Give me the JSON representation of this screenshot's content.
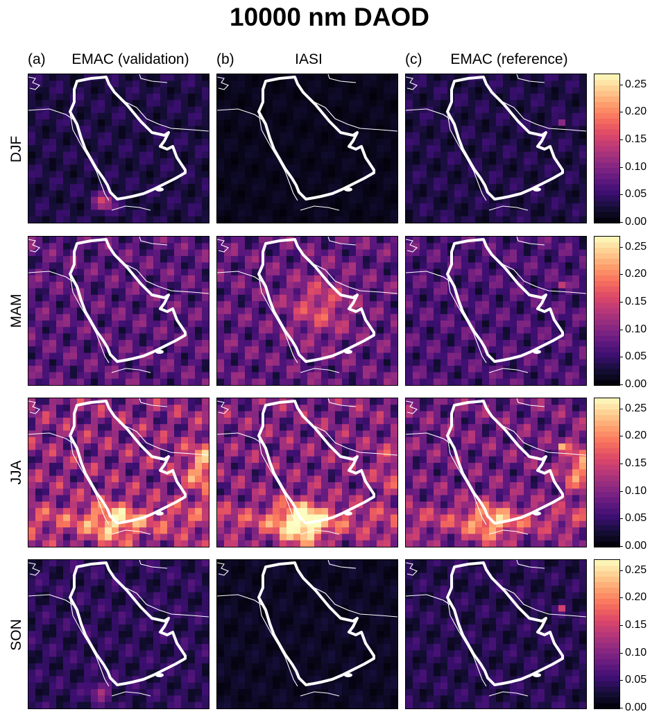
{
  "title": "10000 nm DAOD",
  "columns": [
    {
      "letter": "(a)",
      "name": "EMAC (validation)"
    },
    {
      "letter": "(b)",
      "name": "IASI"
    },
    {
      "letter": "(c)",
      "name": "EMAC (reference)"
    }
  ],
  "seasons": [
    "DJF",
    "MAM",
    "JJA",
    "SON"
  ],
  "colorbar": {
    "ticks": [
      "0.25",
      "0.20",
      "0.15",
      "0.10",
      "0.05",
      "0.00"
    ],
    "range": [
      0,
      0.27
    ],
    "colormap": "magma",
    "colors": [
      "#000004",
      "#140e36",
      "#3b0f70",
      "#641a80",
      "#8c2981",
      "#b73779",
      "#de4968",
      "#f7705c",
      "#fe9f6d",
      "#fecf92",
      "#fcfdbf"
    ]
  },
  "chart_data": {
    "type": "heatmap",
    "title": "10000 nm DAOD",
    "variable": "DAOD",
    "colorbar_ticks": [
      0.0,
      0.05,
      0.1,
      0.15,
      0.2,
      0.25
    ],
    "rows": [
      "DJF",
      "MAM",
      "JJA",
      "SON"
    ],
    "cols": [
      "EMAC (validation)",
      "IASI",
      "EMAC (reference)"
    ],
    "mean_values": [
      [
        0.04,
        0.015,
        0.04
      ],
      [
        0.085,
        0.09,
        0.075
      ],
      [
        0.12,
        0.11,
        0.1
      ],
      [
        0.05,
        0.02,
        0.045
      ]
    ]
  }
}
